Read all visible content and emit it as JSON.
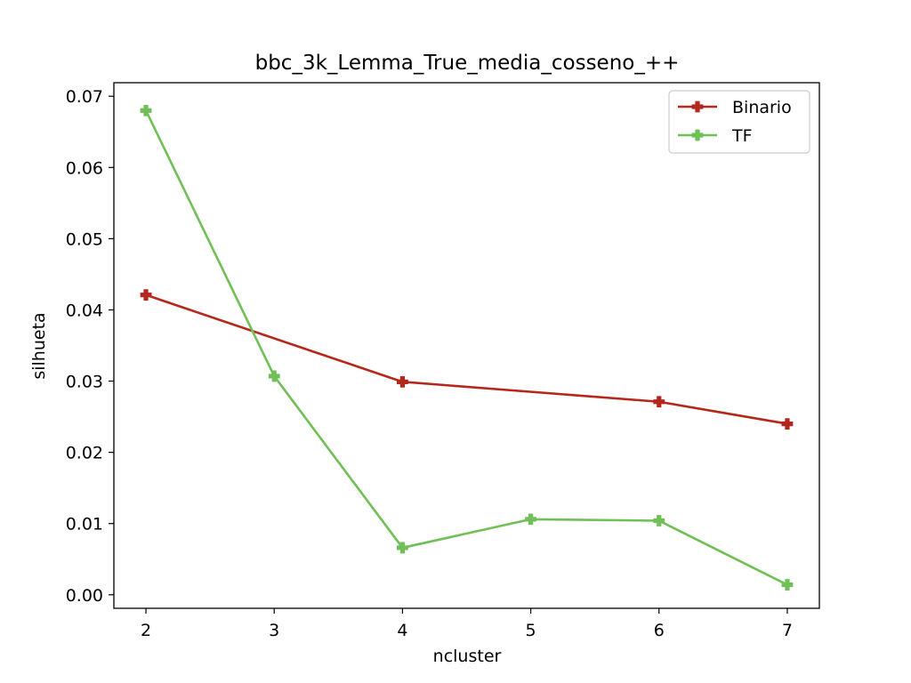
{
  "chart_data": {
    "type": "line",
    "title": "bbc_3k_Lemma_True_media_cosseno_++",
    "xlabel": "ncluster",
    "ylabel": "silhueta",
    "xlim": [
      1.75,
      7.25
    ],
    "ylim": [
      -0.0019,
      0.0719
    ],
    "x_ticks": [
      2,
      3,
      4,
      5,
      6,
      7
    ],
    "x_tick_labels": [
      "2",
      "3",
      "4",
      "5",
      "6",
      "7"
    ],
    "y_ticks": [
      0.0,
      0.01,
      0.02,
      0.03,
      0.04,
      0.05,
      0.06,
      0.07
    ],
    "y_tick_labels": [
      "0.00",
      "0.01",
      "0.02",
      "0.03",
      "0.04",
      "0.05",
      "0.06",
      "0.07"
    ],
    "grid": false,
    "legend_position": "top-right",
    "series": [
      {
        "name": "Binario",
        "color": "#b5271a",
        "marker": "plus-filled",
        "x": [
          2,
          3,
          4,
          5,
          6,
          7
        ],
        "y": [
          0.0421,
          null,
          0.0299,
          null,
          0.0271,
          0.024
        ]
      },
      {
        "name": "TF",
        "color": "#70bf57",
        "marker": "plus-filled",
        "x": [
          2,
          3,
          4,
          5,
          6,
          7
        ],
        "y": [
          0.068,
          0.0307,
          0.0066,
          0.0106,
          0.0104,
          0.0014
        ]
      }
    ]
  }
}
